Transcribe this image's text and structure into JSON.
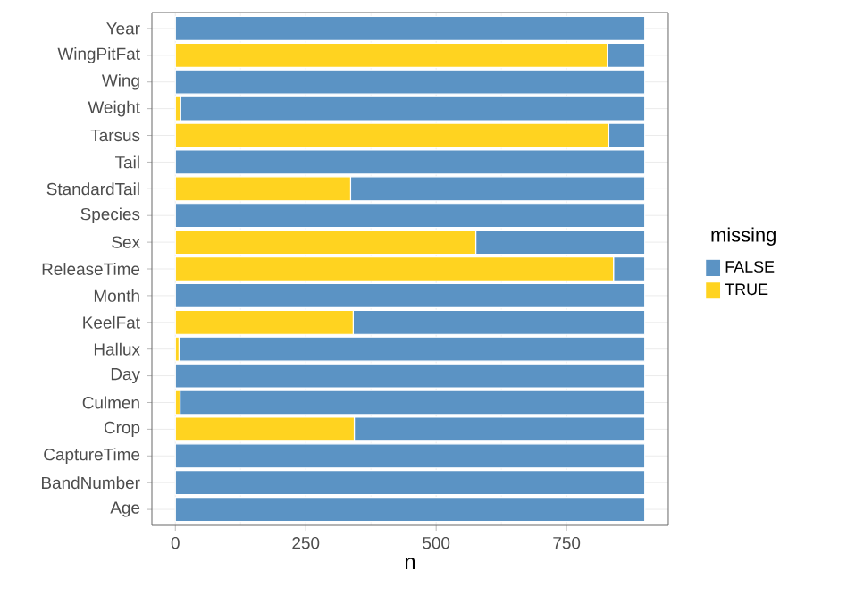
{
  "chart_data": {
    "type": "bar",
    "orientation": "horizontal",
    "stacked": true,
    "categories": [
      "Year",
      "WingPitFat",
      "Wing",
      "Weight",
      "Tarsus",
      "Tail",
      "StandardTail",
      "Species",
      "Sex",
      "ReleaseTime",
      "Month",
      "KeelFat",
      "Hallux",
      "Day",
      "Culmen",
      "Crop",
      "CaptureTime",
      "BandNumber",
      "Age"
    ],
    "series": [
      {
        "name": "TRUE",
        "color": "#ffd320",
        "values": [
          0,
          828,
          0,
          10,
          831,
          0,
          336,
          0,
          576,
          840,
          0,
          341,
          7,
          0,
          9,
          343,
          0,
          0,
          0
        ]
      },
      {
        "name": "FALSE",
        "color": "#5b93c4",
        "values": [
          900,
          72,
          900,
          890,
          69,
          900,
          564,
          900,
          324,
          60,
          900,
          559,
          893,
          900,
          891,
          557,
          900,
          900,
          900
        ]
      }
    ],
    "xlabel": "n",
    "legend_title": "missing",
    "legend": "right",
    "xlim": [
      -45,
      945
    ],
    "xticks": [
      0,
      250,
      500,
      750
    ],
    "grid": true
  }
}
